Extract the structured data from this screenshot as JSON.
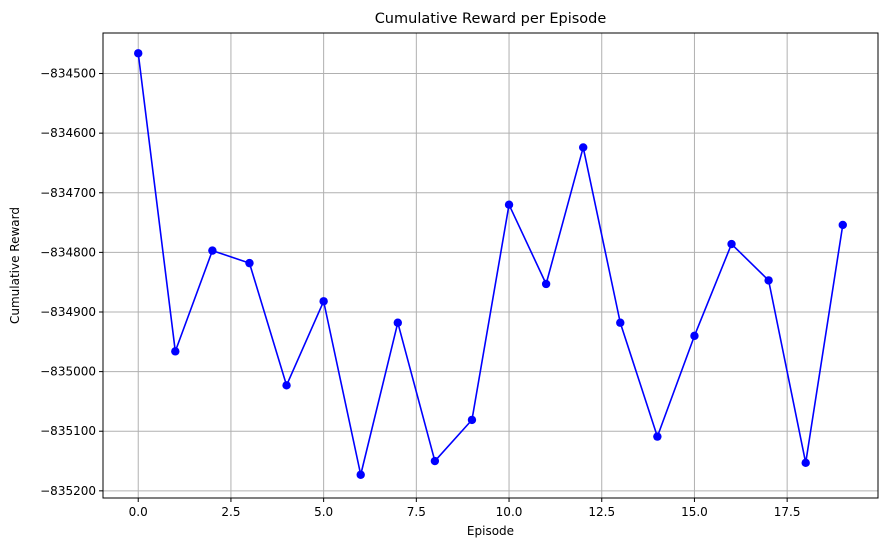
{
  "chart_data": {
    "type": "line",
    "title": "Cumulative Reward per Episode",
    "xlabel": "Episode",
    "ylabel": "Cumulative Reward",
    "xlim": [
      -0.95,
      19.95
    ],
    "ylim": [
      -835212,
      -834432
    ],
    "grid": true,
    "x_ticks": [
      0.0,
      2.5,
      5.0,
      7.5,
      10.0,
      12.5,
      15.0,
      17.5
    ],
    "x_tick_labels": [
      "0.0",
      "2.5",
      "5.0",
      "7.5",
      "10.0",
      "12.5",
      "15.0",
      "17.5"
    ],
    "y_ticks": [
      -834500,
      -834600,
      -834700,
      -834800,
      -834900,
      -835000,
      -835100,
      -835200
    ],
    "y_tick_labels": [
      "−834500",
      "−834600",
      "−834700",
      "−834800",
      "−834900",
      "−835000",
      "−835100",
      "−835200"
    ],
    "series": [
      {
        "color": "#0000ff",
        "marker": "circle",
        "x": [
          0,
          1,
          2,
          3,
          4,
          5,
          6,
          7,
          8,
          9,
          10,
          11,
          12,
          13,
          14,
          15,
          16,
          17,
          18,
          19
        ],
        "y": [
          -834466,
          -834966,
          -834797,
          -834818,
          -835023,
          -834882,
          -835173,
          -834918,
          -835150,
          -835081,
          -834720,
          -834853,
          -834624,
          -834918,
          -835109,
          -834940,
          -834786,
          -834847,
          -835153,
          -834754
        ]
      }
    ]
  }
}
